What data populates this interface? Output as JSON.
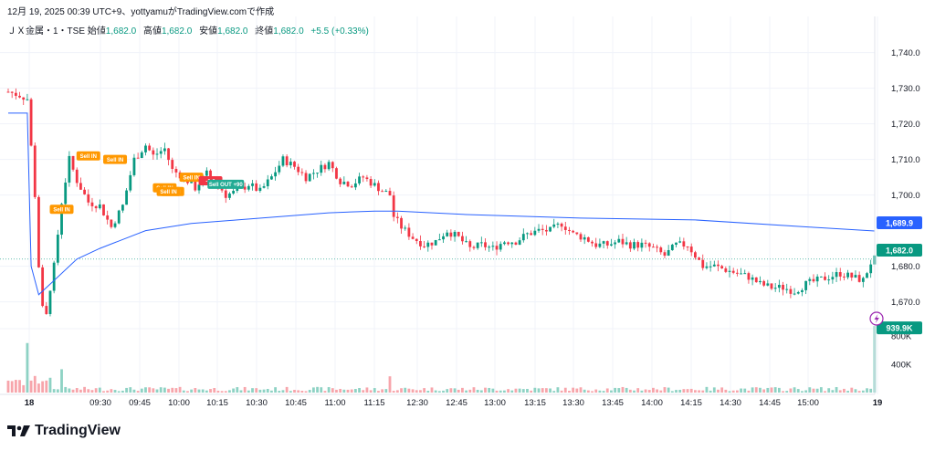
{
  "header": {
    "caption": "12月 19, 2025 00:39 UTC+9、yottyamuがTradingView.comで作成"
  },
  "symbol": {
    "name": "ＪＸ金属・1・TSE",
    "open_label": "始値",
    "open": "1,682.0",
    "high_label": "高値",
    "high": "1,682.0",
    "low_label": "安値",
    "low": "1,682.0",
    "close_label": "終値",
    "close": "1,682.0",
    "change": "+5.5 (+0.33%)"
  },
  "colors": {
    "up": "#089981",
    "down": "#f23645",
    "vwap": "#2962ff",
    "trade": "#ff9800",
    "exit": "#22ab94"
  },
  "icons": [
    "tradingview-logo-icon",
    "lightning-icon"
  ],
  "brand": {
    "name": "TradingView"
  },
  "chart_data": {
    "type": "candlestick",
    "interval": "1 minute",
    "session": "2025-12-18 09:00 - 15:30",
    "xticks": [
      "18",
      "09:30",
      "09:45",
      "10:00",
      "10:15",
      "10:30",
      "10:45",
      "11:00",
      "11:15",
      "12:30",
      "12:45",
      "13:00",
      "13:15",
      "13:30",
      "13:45",
      "14:00",
      "14:15",
      "14:30",
      "14:45",
      "15:00",
      "19"
    ],
    "price_axis": {
      "ticks": [
        "1,740.0",
        "1,730.0",
        "1,720.0",
        "1,710.0",
        "1,700.0",
        "1,680.0",
        "1,670.0"
      ],
      "range": [
        1662,
        1744
      ]
    },
    "volume_axis": {
      "ticks": [
        "800K",
        "400K"
      ],
      "range": [
        0,
        1000000
      ]
    },
    "last_price": {
      "value": 1682.0,
      "label": "1,682.0"
    },
    "vwap": {
      "value": 1689.9,
      "label": "1,689.9"
    },
    "last_volume": {
      "value": 939900,
      "label": "939.9K"
    },
    "price_path": [
      [
        0,
        1729
      ],
      [
        3,
        1728
      ],
      [
        5,
        1727
      ],
      [
        7,
        1700
      ],
      [
        8,
        1680
      ],
      [
        9,
        1668
      ],
      [
        10,
        1666
      ],
      [
        11,
        1674
      ],
      [
        12,
        1680
      ],
      [
        14,
        1698
      ],
      [
        16,
        1710
      ],
      [
        18,
        1704
      ],
      [
        21,
        1698
      ],
      [
        24,
        1697
      ],
      [
        27,
        1691
      ],
      [
        30,
        1697
      ],
      [
        33,
        1710
      ],
      [
        36,
        1714
      ],
      [
        38,
        1711
      ],
      [
        41,
        1713
      ],
      [
        43,
        1707
      ],
      [
        46,
        1705
      ],
      [
        49,
        1702
      ],
      [
        52,
        1706
      ],
      [
        55,
        1703
      ],
      [
        57,
        1700
      ],
      [
        60,
        1701
      ],
      [
        63,
        1703
      ],
      [
        66,
        1701
      ],
      [
        69,
        1705
      ],
      [
        72,
        1710
      ],
      [
        75,
        1708
      ],
      [
        78,
        1705
      ],
      [
        81,
        1707
      ],
      [
        84,
        1709
      ],
      [
        87,
        1704
      ],
      [
        90,
        1703
      ],
      [
        93,
        1705
      ],
      [
        97,
        1702
      ],
      [
        100,
        1700
      ],
      [
        101,
        1694
      ],
      [
        103,
        1691
      ],
      [
        106,
        1688
      ],
      [
        109,
        1686
      ],
      [
        112,
        1687
      ],
      [
        115,
        1690
      ],
      [
        118,
        1688
      ],
      [
        121,
        1685
      ],
      [
        124,
        1686
      ],
      [
        127,
        1685
      ],
      [
        130,
        1687
      ],
      [
        133,
        1687
      ],
      [
        136,
        1689
      ],
      [
        139,
        1690
      ],
      [
        142,
        1690
      ],
      [
        145,
        1692
      ],
      [
        148,
        1689
      ],
      [
        151,
        1688
      ],
      [
        154,
        1686
      ],
      [
        157,
        1686
      ],
      [
        160,
        1687
      ],
      [
        163,
        1686
      ],
      [
        166,
        1686
      ],
      [
        169,
        1685
      ],
      [
        172,
        1683
      ],
      [
        175,
        1686
      ],
      [
        178,
        1686
      ],
      [
        180,
        1683
      ],
      [
        182,
        1680
      ],
      [
        185,
        1680
      ],
      [
        188,
        1679
      ],
      [
        191,
        1678
      ],
      [
        194,
        1677
      ],
      [
        197,
        1675
      ],
      [
        200,
        1674
      ],
      [
        203,
        1674
      ],
      [
        206,
        1673
      ],
      [
        209,
        1675
      ],
      [
        212,
        1676
      ],
      [
        215,
        1677
      ],
      [
        218,
        1678
      ],
      [
        221,
        1677
      ],
      [
        224,
        1676
      ],
      [
        226,
        1681
      ],
      [
        227,
        1682
      ]
    ],
    "vwap_path": [
      [
        0,
        1723
      ],
      [
        5,
        1723
      ],
      [
        6,
        1680
      ],
      [
        8,
        1672
      ],
      [
        12,
        1676
      ],
      [
        18,
        1682
      ],
      [
        24,
        1685
      ],
      [
        36,
        1690
      ],
      [
        48,
        1692
      ],
      [
        60,
        1693
      ],
      [
        72,
        1694
      ],
      [
        84,
        1695
      ],
      [
        96,
        1695.5
      ],
      [
        102,
        1695.5
      ],
      [
        120,
        1694.5
      ],
      [
        150,
        1693.5
      ],
      [
        180,
        1693
      ],
      [
        210,
        1691
      ],
      [
        227,
        1689.9
      ]
    ],
    "trades": [
      {
        "label": "Sell IN",
        "i": 14,
        "price": 1696
      },
      {
        "label": "Sell IN",
        "i": 21,
        "price": 1711
      },
      {
        "label": "Sell IN",
        "i": 28,
        "price": 1710
      },
      {
        "label": "Sell IN",
        "i": 41,
        "price": 1702
      },
      {
        "label": "Sell IN",
        "i": 43,
        "price": 1701
      },
      {
        "label": "Sell IN",
        "i": 48,
        "price": 1705
      },
      {
        "label": "Sell IN",
        "i": 42,
        "price": 1701
      },
      {
        "label": "-1,0",
        "i": 53,
        "price": 1704
      }
    ],
    "exit_trade": {
      "label": "Sell OUT +90",
      "i": 57,
      "price": 1703
    }
  }
}
